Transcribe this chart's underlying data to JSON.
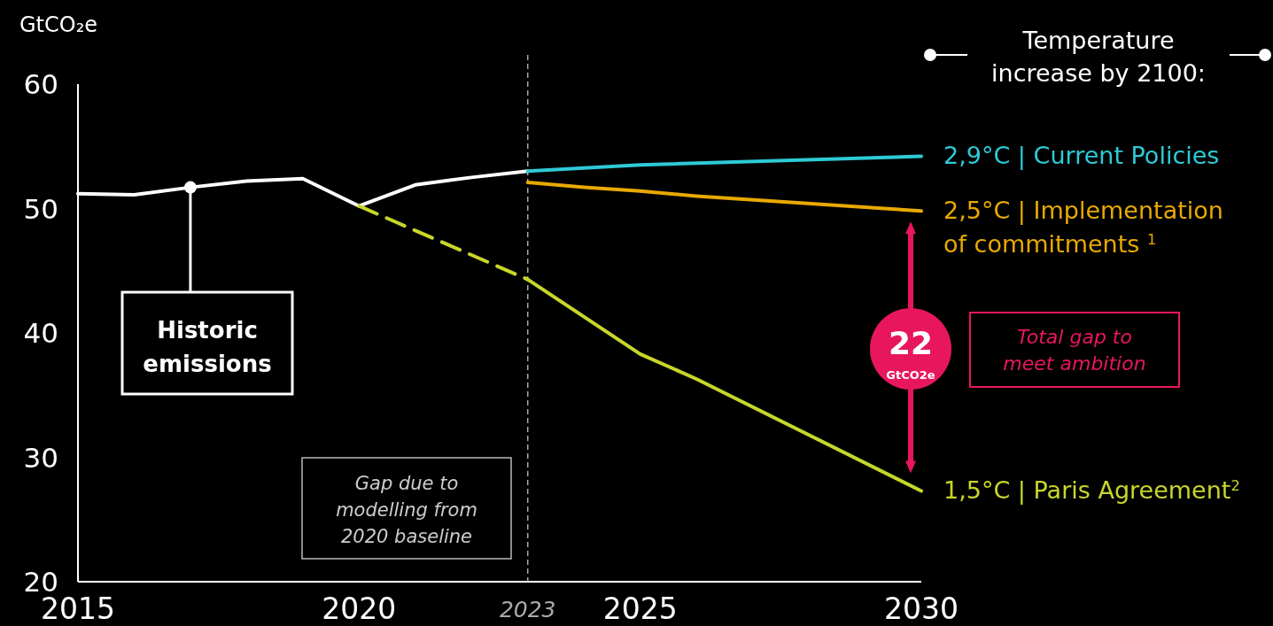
{
  "chart_data": {
    "type": "line",
    "ylabel": "GtCO₂e",
    "legend_title": "Temperature increase by 2100:",
    "xlim": [
      2015,
      2030
    ],
    "xticks": [
      2015,
      2020,
      2025,
      2030
    ],
    "ylim": [
      20,
      60
    ],
    "yticks": [
      20,
      30,
      40,
      50,
      60
    ],
    "grid": false,
    "marker": "none",
    "series": [
      {
        "color": "#ffffff",
        "x": [
          2015,
          2016,
          2017,
          2018,
          2019,
          2020,
          2021,
          2022,
          2023
        ],
        "values": [
          51.2,
          51.1,
          51.7,
          52.2,
          52.4,
          50.2,
          51.9,
          52.5,
          53.0
        ]
      },
      {
        "name": "2,9°C | Current Policies",
        "color": "#2ecad6",
        "x": [
          2023,
          2025,
          2030
        ],
        "values": [
          53.0,
          53.5,
          54.2
        ]
      },
      {
        "name": "2,5°C | Implementation of commitments $^{1}$",
        "color": "#e8a900",
        "x": [
          2023,
          2024,
          2025,
          2026,
          2030
        ],
        "values": [
          52.1,
          51.7,
          51.4,
          51.0,
          49.8
        ]
      },
      {
        "color": "#c8d62a",
        "line_style": "dashed",
        "x": [
          2020,
          2023
        ],
        "values": [
          50.2,
          44.3
        ]
      },
      {
        "name": "1,5°C | Paris Agreement$^{2}$",
        "color": "#c8d62a",
        "x": [
          2023,
          2025,
          2026,
          2030
        ],
        "values": [
          44.3,
          38.3,
          36.3,
          27.3
        ]
      }
    ],
    "ref_lines": [
      {
        "axis": "x",
        "value": 2023,
        "label": "2023",
        "line_style": "dashed",
        "color": "#aaaaaa"
      }
    ],
    "annotations": [
      {
        "text": "Historic emissions",
        "x": 2017,
        "y": 51.7
      },
      "Gap due to modelling from 2020 baseline",
      "22",
      "GtCO2e",
      "Total gap to meet ambition"
    ]
  }
}
